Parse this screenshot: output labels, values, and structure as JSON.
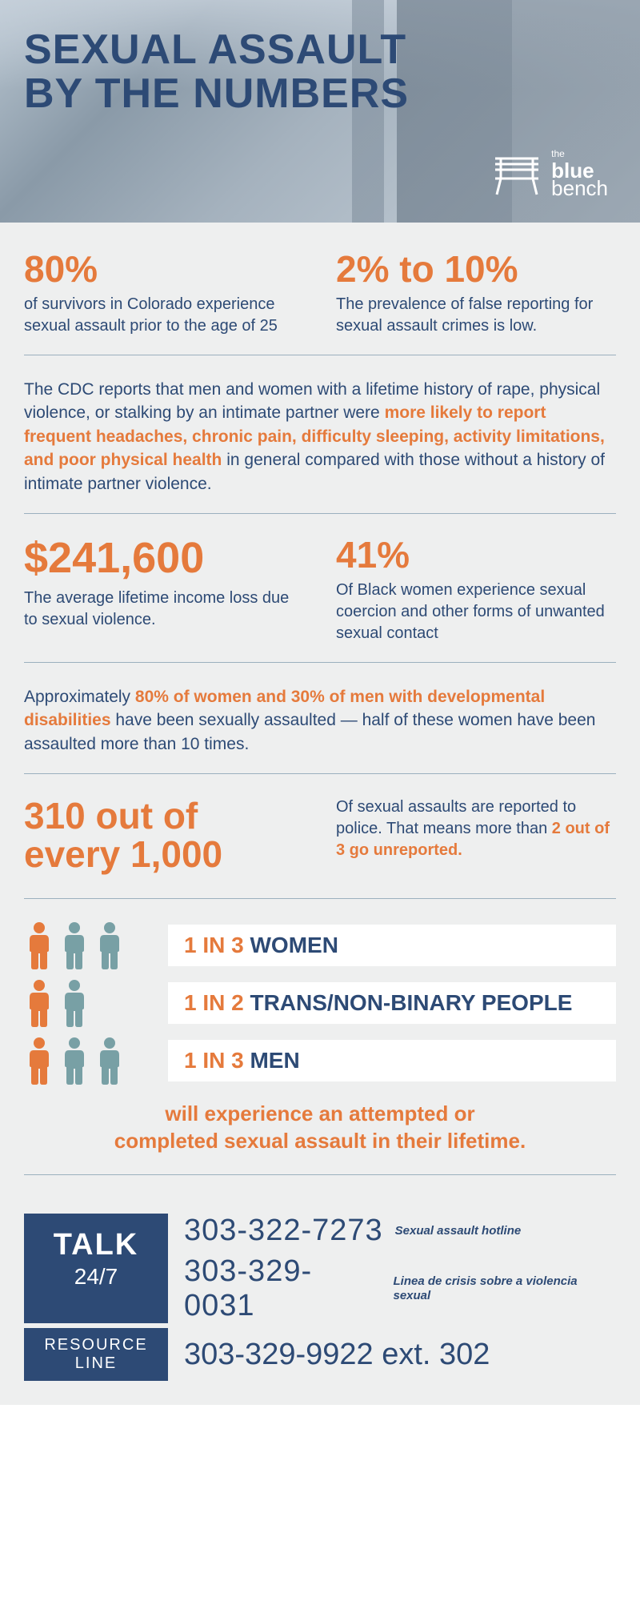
{
  "header": {
    "title_line1": "SEXUAL ASSAULT",
    "title_line2": "BY THE NUMBERS",
    "logo": {
      "the": "the",
      "blue": "blue",
      "bench": "bench"
    }
  },
  "colors": {
    "navy": "#2d4a75",
    "orange": "#e57a3c",
    "teal": "#78a0a5",
    "bg": "#eeefef",
    "divider": "#9bb0be",
    "white": "#ffffff"
  },
  "stats": {
    "s1": {
      "value": "80%",
      "desc": "of survivors in Colorado experience sexual assault prior to the age of 25"
    },
    "s2": {
      "value": "2% to 10%",
      "desc": "The prevalence of false reporting for sexual assault crimes is low."
    },
    "cdc_pre": "The CDC reports that men and women with a lifetime history of rape, physical violence, or stalking by an intimate partner were ",
    "cdc_hi": "more likely to report frequent headaches, chronic pain, difficulty sleeping, activity limitations, and poor physical health",
    "cdc_post": " in general compared with those without a history of intimate partner violence.",
    "s3": {
      "value": "$241,600",
      "desc": "The average lifetime income loss due to sexual violence."
    },
    "s4": {
      "value": "41%",
      "desc": "Of Black women experience sexual coercion and other forms of unwanted sexual contact"
    },
    "dev_pre": "Approximately ",
    "dev_hi": "80% of women and 30% of men with developmental disabilities",
    "dev_post": " have been sexually assaulted — half of these women have been assaulted more than 10 times.",
    "s5": {
      "value_l1": "310 out of",
      "value_l2": "every 1,000",
      "desc_pre": "Of sexual assaults are reported to police. That means more than ",
      "desc_hi": "2 out of 3 go unreported."
    }
  },
  "prevalence": {
    "rows": [
      {
        "ratio": "1 IN 3",
        "group": "WOMEN",
        "people": [
          "orange",
          "teal",
          "teal"
        ]
      },
      {
        "ratio": "1 IN 2",
        "group": "TRANS/NON-BINARY PEOPLE",
        "people": [
          "orange",
          "teal"
        ]
      },
      {
        "ratio": "1 IN 3",
        "group": "MEN",
        "people": [
          "orange",
          "teal",
          "teal"
        ]
      }
    ],
    "caption_l1": "will experience an attempted or",
    "caption_l2": "completed sexual assault in their lifetime."
  },
  "footer": {
    "talk": "TALK",
    "talk_sub": "24/7",
    "phone1": "303-322-7273",
    "phone1_label": "Sexual assault hotline",
    "phone2": "303-329-0031",
    "phone2_label": "Linea de crisis sobre a violencia sexual",
    "resource_l1": "RESOURCE",
    "resource_l2": "LINE",
    "resource_phone": "303-329-9922 ext. 302"
  }
}
